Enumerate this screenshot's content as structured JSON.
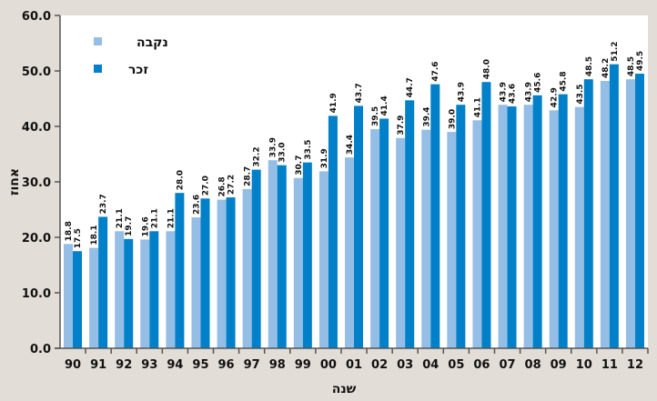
{
  "chart_data": {
    "type": "bar",
    "title": "",
    "xlabel": "שנה",
    "ylabel": "אחוז",
    "ylim": [
      0,
      60
    ],
    "yticks": [
      "0.0",
      "10.0",
      "20.0",
      "30.0",
      "40.0",
      "50.0",
      "60.0"
    ],
    "legend_position": "top-left",
    "categories": [
      "90",
      "91",
      "92",
      "93",
      "94",
      "95",
      "96",
      "97",
      "98",
      "99",
      "00",
      "01",
      "02",
      "03",
      "04",
      "05",
      "06",
      "07",
      "08",
      "09",
      "10",
      "11",
      "12"
    ],
    "series": [
      {
        "name": "נקבה",
        "color": "#94bee6",
        "values": [
          18.8,
          18.1,
          21.1,
          19.6,
          21.1,
          23.6,
          26.8,
          28.7,
          33.9,
          30.7,
          31.9,
          34.4,
          39.5,
          37.9,
          39.4,
          39.0,
          41.1,
          43.9,
          43.9,
          42.9,
          43.5,
          48.2,
          48.5
        ]
      },
      {
        "name": "זכר",
        "color": "#0080c8",
        "values": [
          17.5,
          23.7,
          19.7,
          21.1,
          28.0,
          27.0,
          27.2,
          32.2,
          33.0,
          33.5,
          41.9,
          43.7,
          41.4,
          44.7,
          47.6,
          43.9,
          48.0,
          43.6,
          45.6,
          45.8,
          48.5,
          51.2,
          49.5
        ]
      }
    ]
  }
}
